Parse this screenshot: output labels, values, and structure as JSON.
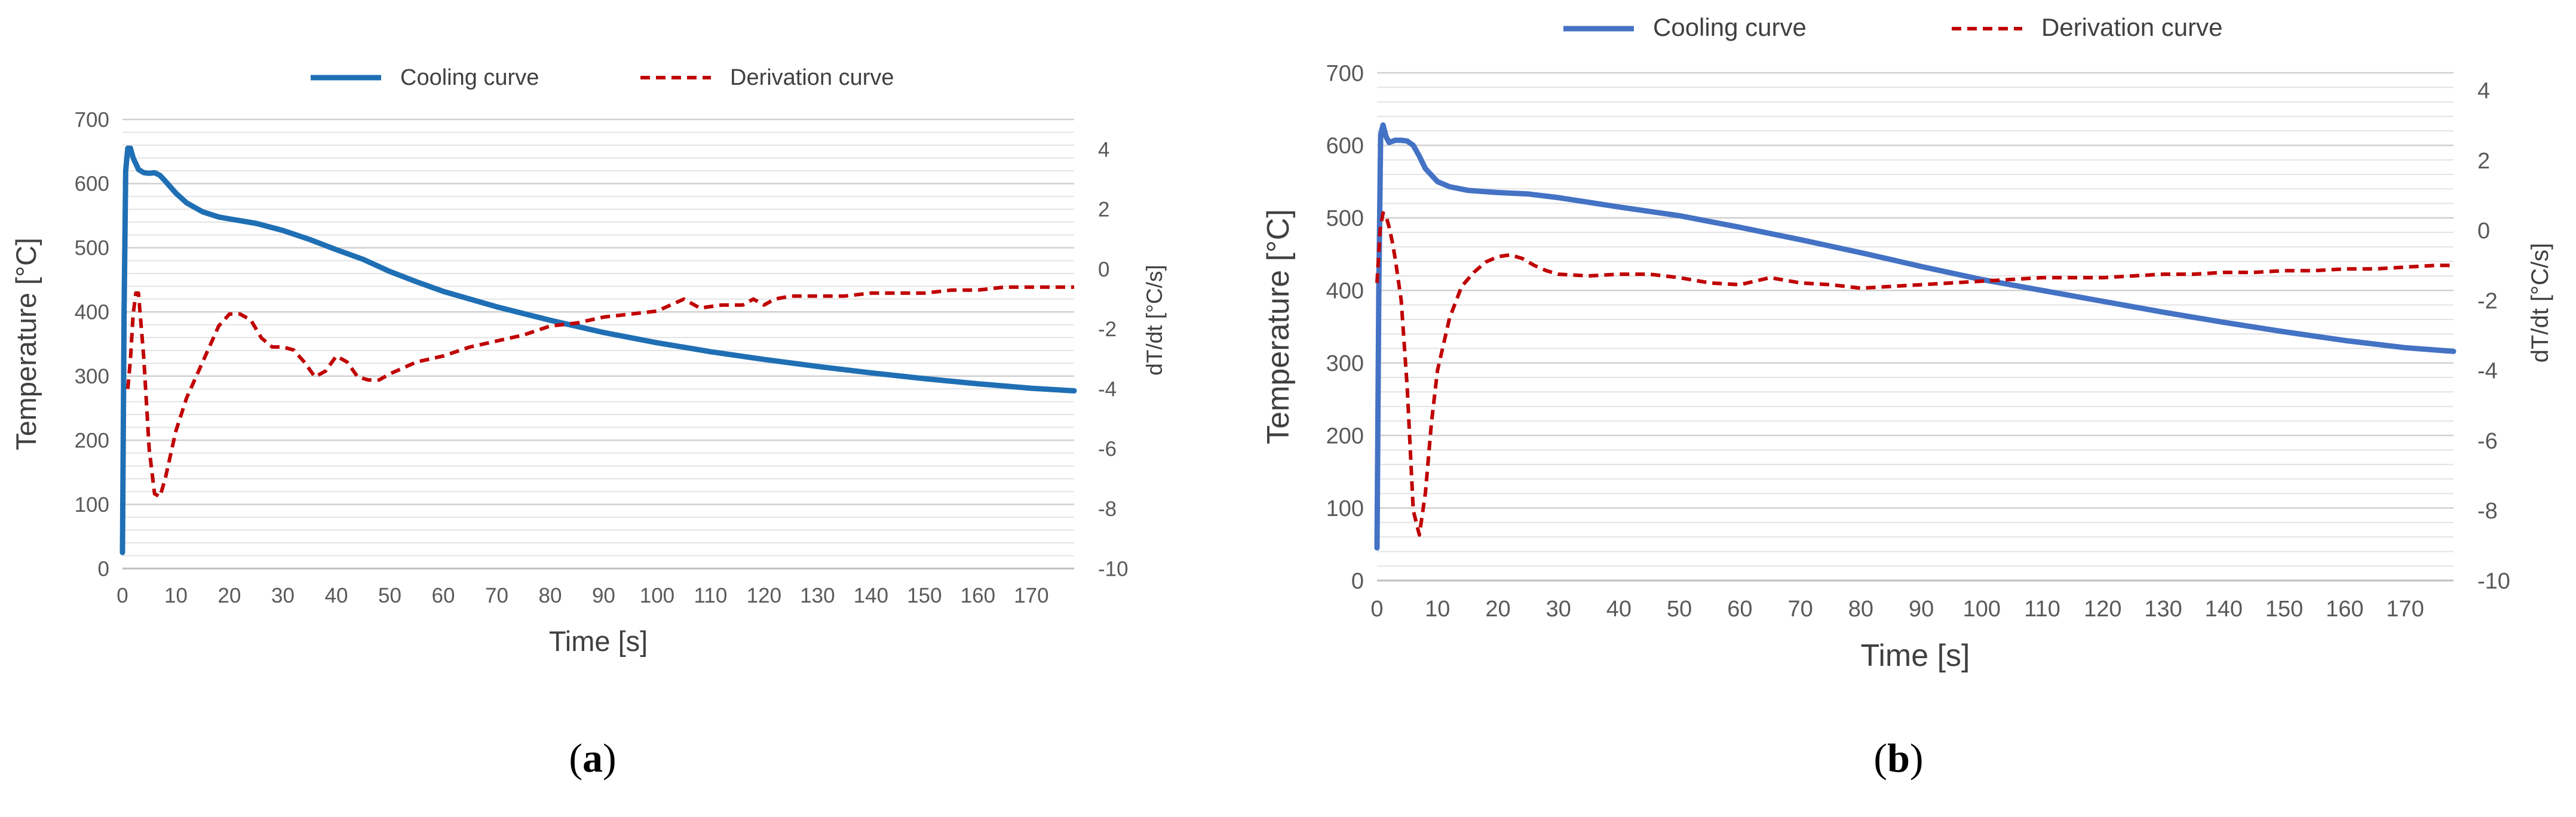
{
  "chart_data": [
    {
      "type": "line",
      "panel_label": "a",
      "xlabel": "Time [s]",
      "ylabel": "Temperature [°C]",
      "y2label": "dT/dt [°C/s]",
      "xlim": [
        0,
        178
      ],
      "ylim": [
        0,
        700
      ],
      "y2lim": [
        -10,
        5
      ],
      "x_ticks": [
        0,
        10,
        20,
        30,
        40,
        50,
        60,
        70,
        80,
        90,
        100,
        110,
        120,
        130,
        140,
        150,
        160,
        170
      ],
      "y_ticks": [
        0,
        100,
        200,
        300,
        400,
        500,
        600,
        700
      ],
      "y2_ticks": [
        -10,
        -8,
        -6,
        -4,
        -2,
        0,
        2,
        4
      ],
      "legend_position": "top-center",
      "grid": true,
      "series": [
        {
          "name": "Cooling curve",
          "axis": "left",
          "color": "#1F6FB4",
          "style": "solid",
          "x": [
            0,
            0.3,
            0.6,
            1,
            1.5,
            2,
            3,
            4,
            5,
            6,
            7,
            8,
            10,
            12,
            15,
            18,
            20,
            25,
            30,
            35,
            40,
            45,
            50,
            55,
            60,
            65,
            70,
            80,
            90,
            100,
            110,
            120,
            130,
            140,
            150,
            160,
            170,
            178
          ],
          "y": [
            25,
            400,
            620,
            655,
            655,
            640,
            622,
            617,
            616,
            617,
            613,
            604,
            585,
            570,
            556,
            548,
            545,
            538,
            527,
            513,
            497,
            482,
            463,
            447,
            432,
            420,
            408,
            387,
            368,
            352,
            338,
            326,
            315,
            305,
            296,
            288,
            281,
            277
          ]
        },
        {
          "name": "Derivation curve",
          "axis": "right",
          "color": "#C00000",
          "style": "dashed",
          "x": [
            1,
            1.5,
            2,
            2.5,
            3,
            4,
            5,
            6,
            7,
            8,
            9,
            10,
            12,
            14,
            16,
            18,
            20,
            22,
            24,
            26,
            28,
            30,
            32,
            34,
            36,
            38,
            40,
            42,
            44,
            46,
            48,
            50,
            55,
            60,
            65,
            70,
            75,
            80,
            85,
            90,
            95,
            100,
            105,
            108,
            112,
            116,
            118,
            120,
            122,
            125,
            128,
            130,
            135,
            140,
            145,
            150,
            155,
            160,
            165,
            170,
            175,
            178
          ],
          "y": [
            -4.0,
            -3.0,
            -1.5,
            -0.8,
            -0.8,
            -3.0,
            -6.0,
            -7.5,
            -7.6,
            -7.0,
            -6.2,
            -5.4,
            -4.3,
            -3.5,
            -2.7,
            -1.9,
            -1.5,
            -1.5,
            -1.7,
            -2.3,
            -2.6,
            -2.6,
            -2.7,
            -3.1,
            -3.6,
            -3.4,
            -2.9,
            -3.1,
            -3.6,
            -3.7,
            -3.7,
            -3.5,
            -3.1,
            -2.9,
            -2.6,
            -2.4,
            -2.2,
            -1.9,
            -1.8,
            -1.6,
            -1.5,
            -1.4,
            -1.0,
            -1.3,
            -1.2,
            -1.2,
            -1.0,
            -1.2,
            -1.0,
            -0.9,
            -0.9,
            -0.9,
            -0.9,
            -0.8,
            -0.8,
            -0.8,
            -0.7,
            -0.7,
            -0.6,
            -0.6,
            -0.6,
            -0.6
          ]
        }
      ]
    },
    {
      "type": "line",
      "panel_label": "b",
      "xlabel": "Time [s]",
      "ylabel": "Temperature [°C]",
      "y2label": "dT/dt [°C/s]",
      "xlim": [
        0,
        178
      ],
      "ylim": [
        0,
        700
      ],
      "y2lim": [
        -10,
        4.5
      ],
      "x_ticks": [
        0,
        10,
        20,
        30,
        40,
        50,
        60,
        70,
        80,
        90,
        100,
        110,
        120,
        130,
        140,
        150,
        160,
        170
      ],
      "y_ticks": [
        0,
        100,
        200,
        300,
        400,
        500,
        600,
        700
      ],
      "y2_ticks": [
        -10,
        -8,
        -6,
        -4,
        -2,
        0,
        2,
        4
      ],
      "legend_position": "top-center",
      "grid": true,
      "series": [
        {
          "name": "Cooling curve",
          "axis": "left",
          "color": "#4472C4",
          "style": "solid",
          "x": [
            0,
            0.3,
            0.6,
            1,
            1.5,
            2,
            3,
            4,
            5,
            6,
            7,
            8,
            10,
            12,
            15,
            20,
            25,
            30,
            40,
            50,
            60,
            70,
            80,
            90,
            100,
            110,
            120,
            130,
            140,
            150,
            160,
            170,
            178
          ],
          "y": [
            45,
            400,
            615,
            628,
            612,
            604,
            607,
            607,
            606,
            600,
            585,
            568,
            550,
            543,
            538,
            535,
            533,
            528,
            515,
            503,
            487,
            470,
            452,
            433,
            415,
            400,
            385,
            370,
            356,
            343,
            331,
            321,
            316
          ]
        },
        {
          "name": "Derivation curve",
          "axis": "right",
          "color": "#C00000",
          "style": "dashed",
          "x": [
            0,
            0.5,
            1,
            1.5,
            2,
            2.5,
            3,
            4,
            5,
            6,
            7,
            8,
            9,
            10,
            12,
            14,
            16,
            18,
            20,
            22,
            24,
            26,
            28,
            30,
            35,
            40,
            45,
            50,
            55,
            60,
            65,
            70,
            75,
            80,
            85,
            90,
            95,
            100,
            105,
            110,
            115,
            120,
            125,
            130,
            135,
            140,
            145,
            150,
            155,
            160,
            165,
            170,
            175,
            178
          ],
          "y": [
            -1.5,
            0.0,
            0.5,
            0.4,
            0.1,
            -0.3,
            -0.8,
            -2.0,
            -4.5,
            -8.0,
            -8.7,
            -7.5,
            -5.5,
            -4.0,
            -2.5,
            -1.6,
            -1.2,
            -0.9,
            -0.75,
            -0.7,
            -0.8,
            -1.0,
            -1.15,
            -1.25,
            -1.3,
            -1.25,
            -1.25,
            -1.35,
            -1.5,
            -1.55,
            -1.35,
            -1.5,
            -1.55,
            -1.65,
            -1.6,
            -1.55,
            -1.5,
            -1.45,
            -1.4,
            -1.35,
            -1.35,
            -1.35,
            -1.3,
            -1.25,
            -1.25,
            -1.2,
            -1.2,
            -1.15,
            -1.15,
            -1.1,
            -1.1,
            -1.05,
            -1.0,
            -1.0
          ]
        }
      ]
    }
  ]
}
